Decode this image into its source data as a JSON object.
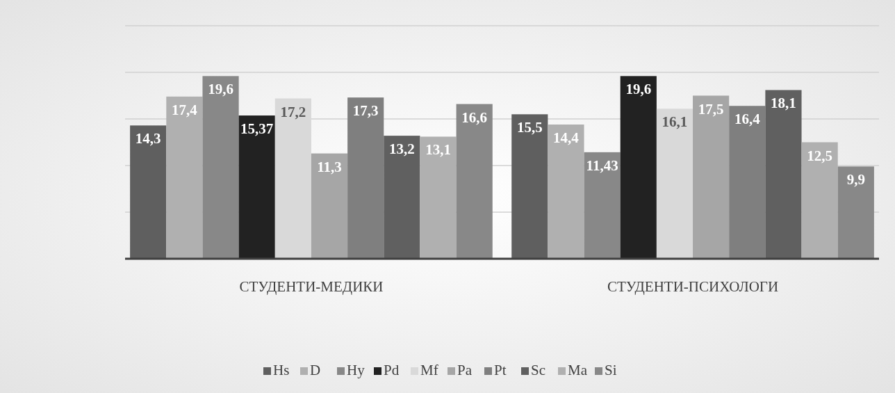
{
  "chart_data": {
    "type": "bar",
    "categories": [
      "СТУДЕНТИ-МЕДИКИ",
      "СТУДЕНТИ-ПСИХОЛОГИ"
    ],
    "ylim": [
      0,
      25
    ],
    "yticks": [
      {
        "value": 0,
        "label": null
      },
      {
        "value": 5,
        "label": null
      },
      {
        "value": 10,
        "label": null
      },
      {
        "value": 15,
        "label": null
      },
      {
        "value": 20,
        "label": null
      },
      {
        "value": 25,
        "label": null
      }
    ],
    "tick_labels": "x",
    "grid": "y",
    "legend": "bottom",
    "series": [
      {
        "name": "Hs",
        "color": "#5f5f5f",
        "values": [
          14.3,
          15.5
        ],
        "value_labels": [
          "14,3",
          "15,5"
        ]
      },
      {
        "name": "D",
        "color": "#b0b0b0",
        "values": [
          17.4,
          14.4
        ],
        "value_labels": [
          "17,4",
          "14,4"
        ]
      },
      {
        "name": "Hy",
        "color": "#888888",
        "values": [
          19.6,
          11.43
        ],
        "value_labels": [
          "19,6",
          "11,43"
        ]
      },
      {
        "name": "Pd",
        "color": "#222222",
        "values": [
          15.37,
          19.6
        ],
        "value_labels": [
          "15,37",
          "19,6"
        ]
      },
      {
        "name": "Mf",
        "color": "#d9d9d9",
        "values": [
          17.2,
          16.1
        ],
        "value_labels": [
          "17,2",
          "16,1"
        ]
      },
      {
        "name": "Pa",
        "color": "#a6a6a6",
        "values": [
          11.3,
          17.5
        ],
        "value_labels": [
          "11,3",
          "17,5"
        ]
      },
      {
        "name": "Pt",
        "color": "#7f7f7f",
        "values": [
          17.3,
          16.4
        ],
        "value_labels": [
          "17,3",
          "16,4"
        ]
      },
      {
        "name": "Sc",
        "color": "#606060",
        "values": [
          13.2,
          18.1
        ],
        "value_labels": [
          "13,2",
          "18,1"
        ]
      },
      {
        "name": "Ma",
        "color": "#b0b0b0",
        "values": [
          13.1,
          12.5
        ],
        "value_labels": [
          "13,1",
          "12,5"
        ]
      },
      {
        "name": "Si",
        "color": "#888888",
        "values": [
          16.6,
          9.9
        ],
        "value_labels": [
          "16,6",
          "9,9"
        ]
      }
    ]
  }
}
